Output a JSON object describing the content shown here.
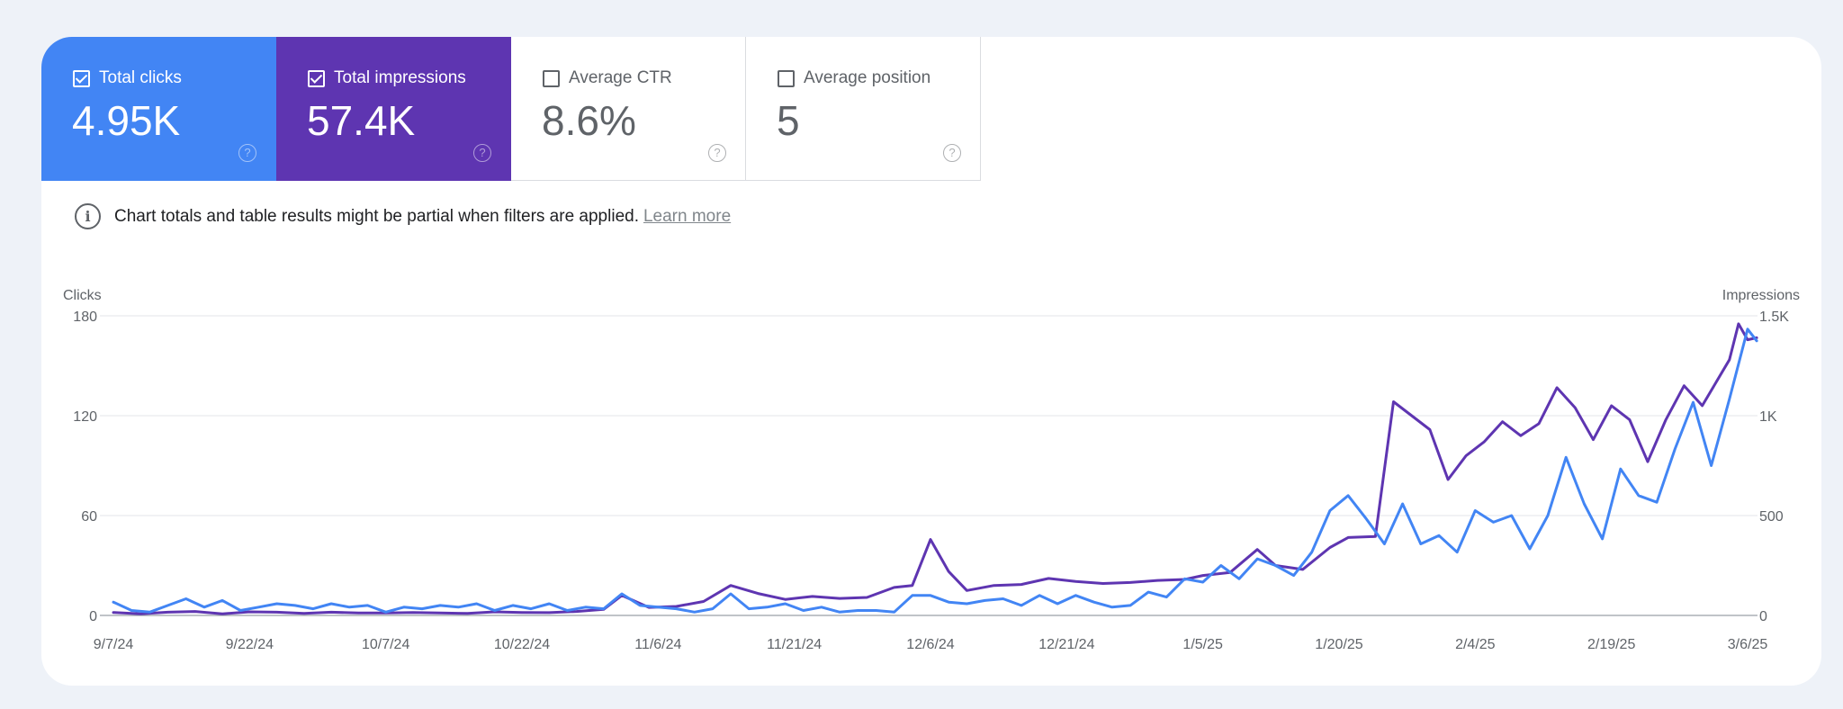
{
  "metrics": [
    {
      "label": "Total clicks",
      "value": "4.95K",
      "checked": true,
      "color": "#4285f4"
    },
    {
      "label": "Total impressions",
      "value": "57.4K",
      "checked": true,
      "color": "#5e35b1"
    },
    {
      "label": "Average CTR",
      "value": "8.6%",
      "checked": false,
      "color": "#ffffff"
    },
    {
      "label": "Average position",
      "value": "5",
      "checked": false,
      "color": "#ffffff"
    }
  ],
  "notice": {
    "text": "Chart totals and table results might be partial when filters are applied.",
    "link": "Learn more"
  },
  "chart_data": {
    "type": "line",
    "ylabel_left": "Clicks",
    "ylabel_right": "Impressions",
    "y_left_ticks": [
      "0",
      "60",
      "120",
      "180"
    ],
    "y_left_lim": [
      0,
      180
    ],
    "y_right_ticks": [
      "0",
      "500",
      "1K",
      "1.5K"
    ],
    "y_right_lim": [
      0,
      1500
    ],
    "x_tick_labels": [
      "9/7/24",
      "9/22/24",
      "10/7/24",
      "10/22/24",
      "11/6/24",
      "11/21/24",
      "12/6/24",
      "12/21/24",
      "1/5/25",
      "1/20/25",
      "2/4/25",
      "2/19/25",
      "3/6/25"
    ],
    "x_tick_dates": [
      "2024-09-07",
      "2024-09-22",
      "2024-10-07",
      "2024-10-22",
      "2024-11-06",
      "2024-11-21",
      "2024-12-06",
      "2024-12-21",
      "2025-01-05",
      "2025-01-20",
      "2025-02-04",
      "2025-02-19",
      "2025-03-06"
    ],
    "grid": true,
    "series": [
      {
        "name": "Total clicks",
        "axis": "left",
        "color": "#4285f4",
        "points": [
          [
            "2024-09-07",
            8
          ],
          [
            "2024-09-09",
            3
          ],
          [
            "2024-09-11",
            2
          ],
          [
            "2024-09-13",
            6
          ],
          [
            "2024-09-15",
            10
          ],
          [
            "2024-09-17",
            5
          ],
          [
            "2024-09-19",
            9
          ],
          [
            "2024-09-21",
            3
          ],
          [
            "2024-09-23",
            5
          ],
          [
            "2024-09-25",
            7
          ],
          [
            "2024-09-27",
            6
          ],
          [
            "2024-09-29",
            4
          ],
          [
            "2024-10-01",
            7
          ],
          [
            "2024-10-03",
            5
          ],
          [
            "2024-10-05",
            6
          ],
          [
            "2024-10-07",
            2
          ],
          [
            "2024-10-09",
            5
          ],
          [
            "2024-10-11",
            4
          ],
          [
            "2024-10-13",
            6
          ],
          [
            "2024-10-15",
            5
          ],
          [
            "2024-10-17",
            7
          ],
          [
            "2024-10-19",
            3
          ],
          [
            "2024-10-21",
            6
          ],
          [
            "2024-10-23",
            4
          ],
          [
            "2024-10-25",
            7
          ],
          [
            "2024-10-27",
            3
          ],
          [
            "2024-10-29",
            5
          ],
          [
            "2024-10-31",
            4
          ],
          [
            "2024-11-02",
            13
          ],
          [
            "2024-11-04",
            6
          ],
          [
            "2024-11-06",
            5
          ],
          [
            "2024-11-08",
            4
          ],
          [
            "2024-11-10",
            2
          ],
          [
            "2024-11-12",
            4
          ],
          [
            "2024-11-14",
            13
          ],
          [
            "2024-11-16",
            4
          ],
          [
            "2024-11-18",
            5
          ],
          [
            "2024-11-20",
            7
          ],
          [
            "2024-11-22",
            3
          ],
          [
            "2024-11-24",
            5
          ],
          [
            "2024-11-26",
            2
          ],
          [
            "2024-11-28",
            3
          ],
          [
            "2024-11-30",
            3
          ],
          [
            "2024-12-02",
            2
          ],
          [
            "2024-12-04",
            12
          ],
          [
            "2024-12-06",
            12
          ],
          [
            "2024-12-08",
            8
          ],
          [
            "2024-12-10",
            7
          ],
          [
            "2024-12-12",
            9
          ],
          [
            "2024-12-14",
            10
          ],
          [
            "2024-12-16",
            6
          ],
          [
            "2024-12-18",
            12
          ],
          [
            "2024-12-20",
            7
          ],
          [
            "2024-12-22",
            12
          ],
          [
            "2024-12-24",
            8
          ],
          [
            "2024-12-26",
            5
          ],
          [
            "2024-12-28",
            6
          ],
          [
            "2024-12-30",
            14
          ],
          [
            "2025-01-01",
            11
          ],
          [
            "2025-01-03",
            22
          ],
          [
            "2025-01-05",
            20
          ],
          [
            "2025-01-07",
            30
          ],
          [
            "2025-01-09",
            22
          ],
          [
            "2025-01-11",
            34
          ],
          [
            "2025-01-13",
            30
          ],
          [
            "2025-01-15",
            24
          ],
          [
            "2025-01-17",
            38
          ],
          [
            "2025-01-19",
            63
          ],
          [
            "2025-01-21",
            72
          ],
          [
            "2025-01-23",
            58
          ],
          [
            "2025-01-25",
            43
          ],
          [
            "2025-01-27",
            67
          ],
          [
            "2025-01-29",
            43
          ],
          [
            "2025-01-31",
            48
          ],
          [
            "2025-02-02",
            38
          ],
          [
            "2025-02-04",
            63
          ],
          [
            "2025-02-06",
            56
          ],
          [
            "2025-02-08",
            60
          ],
          [
            "2025-02-10",
            40
          ],
          [
            "2025-02-12",
            60
          ],
          [
            "2025-02-14",
            95
          ],
          [
            "2025-02-16",
            67
          ],
          [
            "2025-02-18",
            46
          ],
          [
            "2025-02-20",
            88
          ],
          [
            "2025-02-22",
            72
          ],
          [
            "2025-02-24",
            68
          ],
          [
            "2025-02-26",
            100
          ],
          [
            "2025-02-28",
            128
          ],
          [
            "2025-03-02",
            90
          ],
          [
            "2025-03-04",
            130
          ],
          [
            "2025-03-06",
            172
          ],
          [
            "2025-03-07",
            165
          ]
        ]
      },
      {
        "name": "Total impressions",
        "axis": "right",
        "color": "#5e35b1",
        "points": [
          [
            "2024-09-07",
            15
          ],
          [
            "2024-09-10",
            8
          ],
          [
            "2024-09-13",
            16
          ],
          [
            "2024-09-16",
            20
          ],
          [
            "2024-09-19",
            8
          ],
          [
            "2024-09-22",
            18
          ],
          [
            "2024-09-25",
            16
          ],
          [
            "2024-09-28",
            10
          ],
          [
            "2024-10-01",
            16
          ],
          [
            "2024-10-04",
            12
          ],
          [
            "2024-10-07",
            12
          ],
          [
            "2024-10-10",
            15
          ],
          [
            "2024-10-13",
            12
          ],
          [
            "2024-10-16",
            10
          ],
          [
            "2024-10-19",
            18
          ],
          [
            "2024-10-22",
            15
          ],
          [
            "2024-10-25",
            14
          ],
          [
            "2024-10-28",
            20
          ],
          [
            "2024-10-31",
            30
          ],
          [
            "2024-11-02",
            100
          ],
          [
            "2024-11-05",
            40
          ],
          [
            "2024-11-08",
            45
          ],
          [
            "2024-11-11",
            70
          ],
          [
            "2024-11-14",
            150
          ],
          [
            "2024-11-17",
            110
          ],
          [
            "2024-11-20",
            80
          ],
          [
            "2024-11-23",
            95
          ],
          [
            "2024-11-26",
            85
          ],
          [
            "2024-11-29",
            90
          ],
          [
            "2024-12-02",
            140
          ],
          [
            "2024-12-04",
            150
          ],
          [
            "2024-12-06",
            380
          ],
          [
            "2024-12-08",
            220
          ],
          [
            "2024-12-10",
            125
          ],
          [
            "2024-12-13",
            150
          ],
          [
            "2024-12-16",
            155
          ],
          [
            "2024-12-19",
            185
          ],
          [
            "2024-12-22",
            170
          ],
          [
            "2024-12-25",
            160
          ],
          [
            "2024-12-28",
            165
          ],
          [
            "2024-12-31",
            175
          ],
          [
            "2025-01-03",
            180
          ],
          [
            "2025-01-05",
            200
          ],
          [
            "2025-01-08",
            215
          ],
          [
            "2025-01-11",
            330
          ],
          [
            "2025-01-13",
            250
          ],
          [
            "2025-01-16",
            230
          ],
          [
            "2025-01-19",
            340
          ],
          [
            "2025-01-21",
            390
          ],
          [
            "2025-01-24",
            395
          ],
          [
            "2025-01-26",
            1070
          ],
          [
            "2025-01-28",
            1000
          ],
          [
            "2025-01-30",
            930
          ],
          [
            "2025-02-01",
            680
          ],
          [
            "2025-02-03",
            800
          ],
          [
            "2025-02-05",
            870
          ],
          [
            "2025-02-07",
            970
          ],
          [
            "2025-02-09",
            900
          ],
          [
            "2025-02-11",
            960
          ],
          [
            "2025-02-13",
            1140
          ],
          [
            "2025-02-15",
            1040
          ],
          [
            "2025-02-17",
            880
          ],
          [
            "2025-02-19",
            1050
          ],
          [
            "2025-02-21",
            980
          ],
          [
            "2025-02-23",
            770
          ],
          [
            "2025-02-25",
            980
          ],
          [
            "2025-02-27",
            1150
          ],
          [
            "2025-03-01",
            1050
          ],
          [
            "2025-03-04",
            1280
          ],
          [
            "2025-03-05",
            1460
          ],
          [
            "2025-03-06",
            1380
          ],
          [
            "2025-03-07",
            1390
          ]
        ]
      }
    ]
  }
}
